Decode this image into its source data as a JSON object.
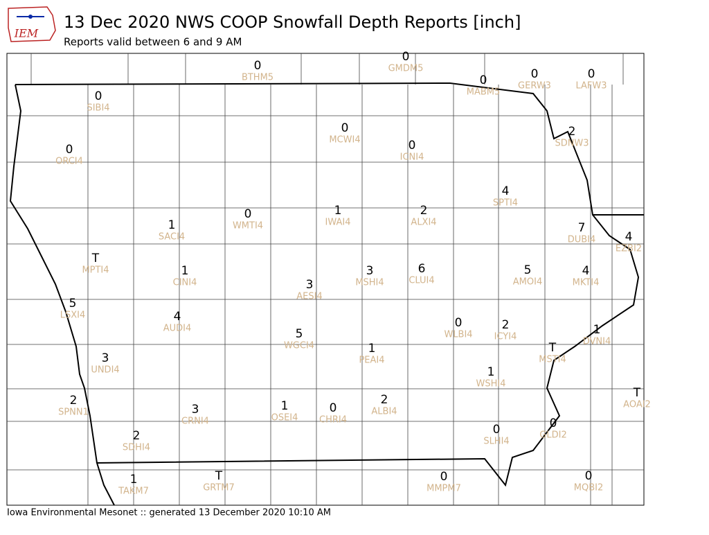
{
  "header": {
    "logo": "IEM",
    "title": "13 Dec 2020 NWS COOP Snowfall Depth Reports [inch]",
    "subtitle": "Reports valid between 6 and 9 AM"
  },
  "stations": [
    {
      "id": "BTHM5",
      "value": 0
    },
    {
      "id": "GMDM5",
      "value": 0
    },
    {
      "id": "MABM5",
      "value": 0
    },
    {
      "id": "GERW3",
      "value": 0
    },
    {
      "id": "LAFW3",
      "value": 0
    },
    {
      "id": "SIBI4",
      "value": 0
    },
    {
      "id": "MCWI4",
      "value": 0
    },
    {
      "id": "SDNW3",
      "value": 2
    },
    {
      "id": "ORCI4",
      "value": 0
    },
    {
      "id": "ICNI4",
      "value": 0
    },
    {
      "id": "SPTI4",
      "value": 4
    },
    {
      "id": "IWAI4",
      "value": 1
    },
    {
      "id": "ALXI4",
      "value": 2
    },
    {
      "id": "WMTI4",
      "value": 0
    },
    {
      "id": "SACI4",
      "value": 1
    },
    {
      "id": "DUBI4",
      "value": 7
    },
    {
      "id": "EZBI2",
      "value": 4
    },
    {
      "id": "MPTI4",
      "value": "T"
    },
    {
      "id": "CINI4",
      "value": 1
    },
    {
      "id": "MSHI4",
      "value": 3
    },
    {
      "id": "CLUI4",
      "value": 6
    },
    {
      "id": "AMOI4",
      "value": 5
    },
    {
      "id": "MKTI4",
      "value": 4
    },
    {
      "id": "AESI4",
      "value": 3
    },
    {
      "id": "LSXI4",
      "value": 5
    },
    {
      "id": "AUDI4",
      "value": 4
    },
    {
      "id": "WLBI4",
      "value": 0
    },
    {
      "id": "ICYI4",
      "value": 2
    },
    {
      "id": "WGCI4",
      "value": 5
    },
    {
      "id": "DVNI4",
      "value": 1
    },
    {
      "id": "MSTI4",
      "value": "T"
    },
    {
      "id": "PEAI4",
      "value": 1
    },
    {
      "id": "UNDI4",
      "value": 3
    },
    {
      "id": "WSHI4",
      "value": 1
    },
    {
      "id": "AOAI2",
      "value": "T"
    },
    {
      "id": "SPNN1",
      "value": 2
    },
    {
      "id": "CRNI4",
      "value": 3
    },
    {
      "id": "OSEI4",
      "value": 1
    },
    {
      "id": "CHRI4",
      "value": 0
    },
    {
      "id": "ALBI4",
      "value": 2
    },
    {
      "id": "SLHI4",
      "value": 0
    },
    {
      "id": "GLDI2",
      "value": 0
    },
    {
      "id": "SDHI4",
      "value": 2
    },
    {
      "id": "TAKM7",
      "value": 1
    },
    {
      "id": "GRTM7",
      "value": "T"
    },
    {
      "id": "MMPM7",
      "value": 0
    },
    {
      "id": "MQBI2",
      "value": 0
    }
  ],
  "footer": "Iowa Environmental Mesonet :: generated 13 December 2020 10:10 AM"
}
